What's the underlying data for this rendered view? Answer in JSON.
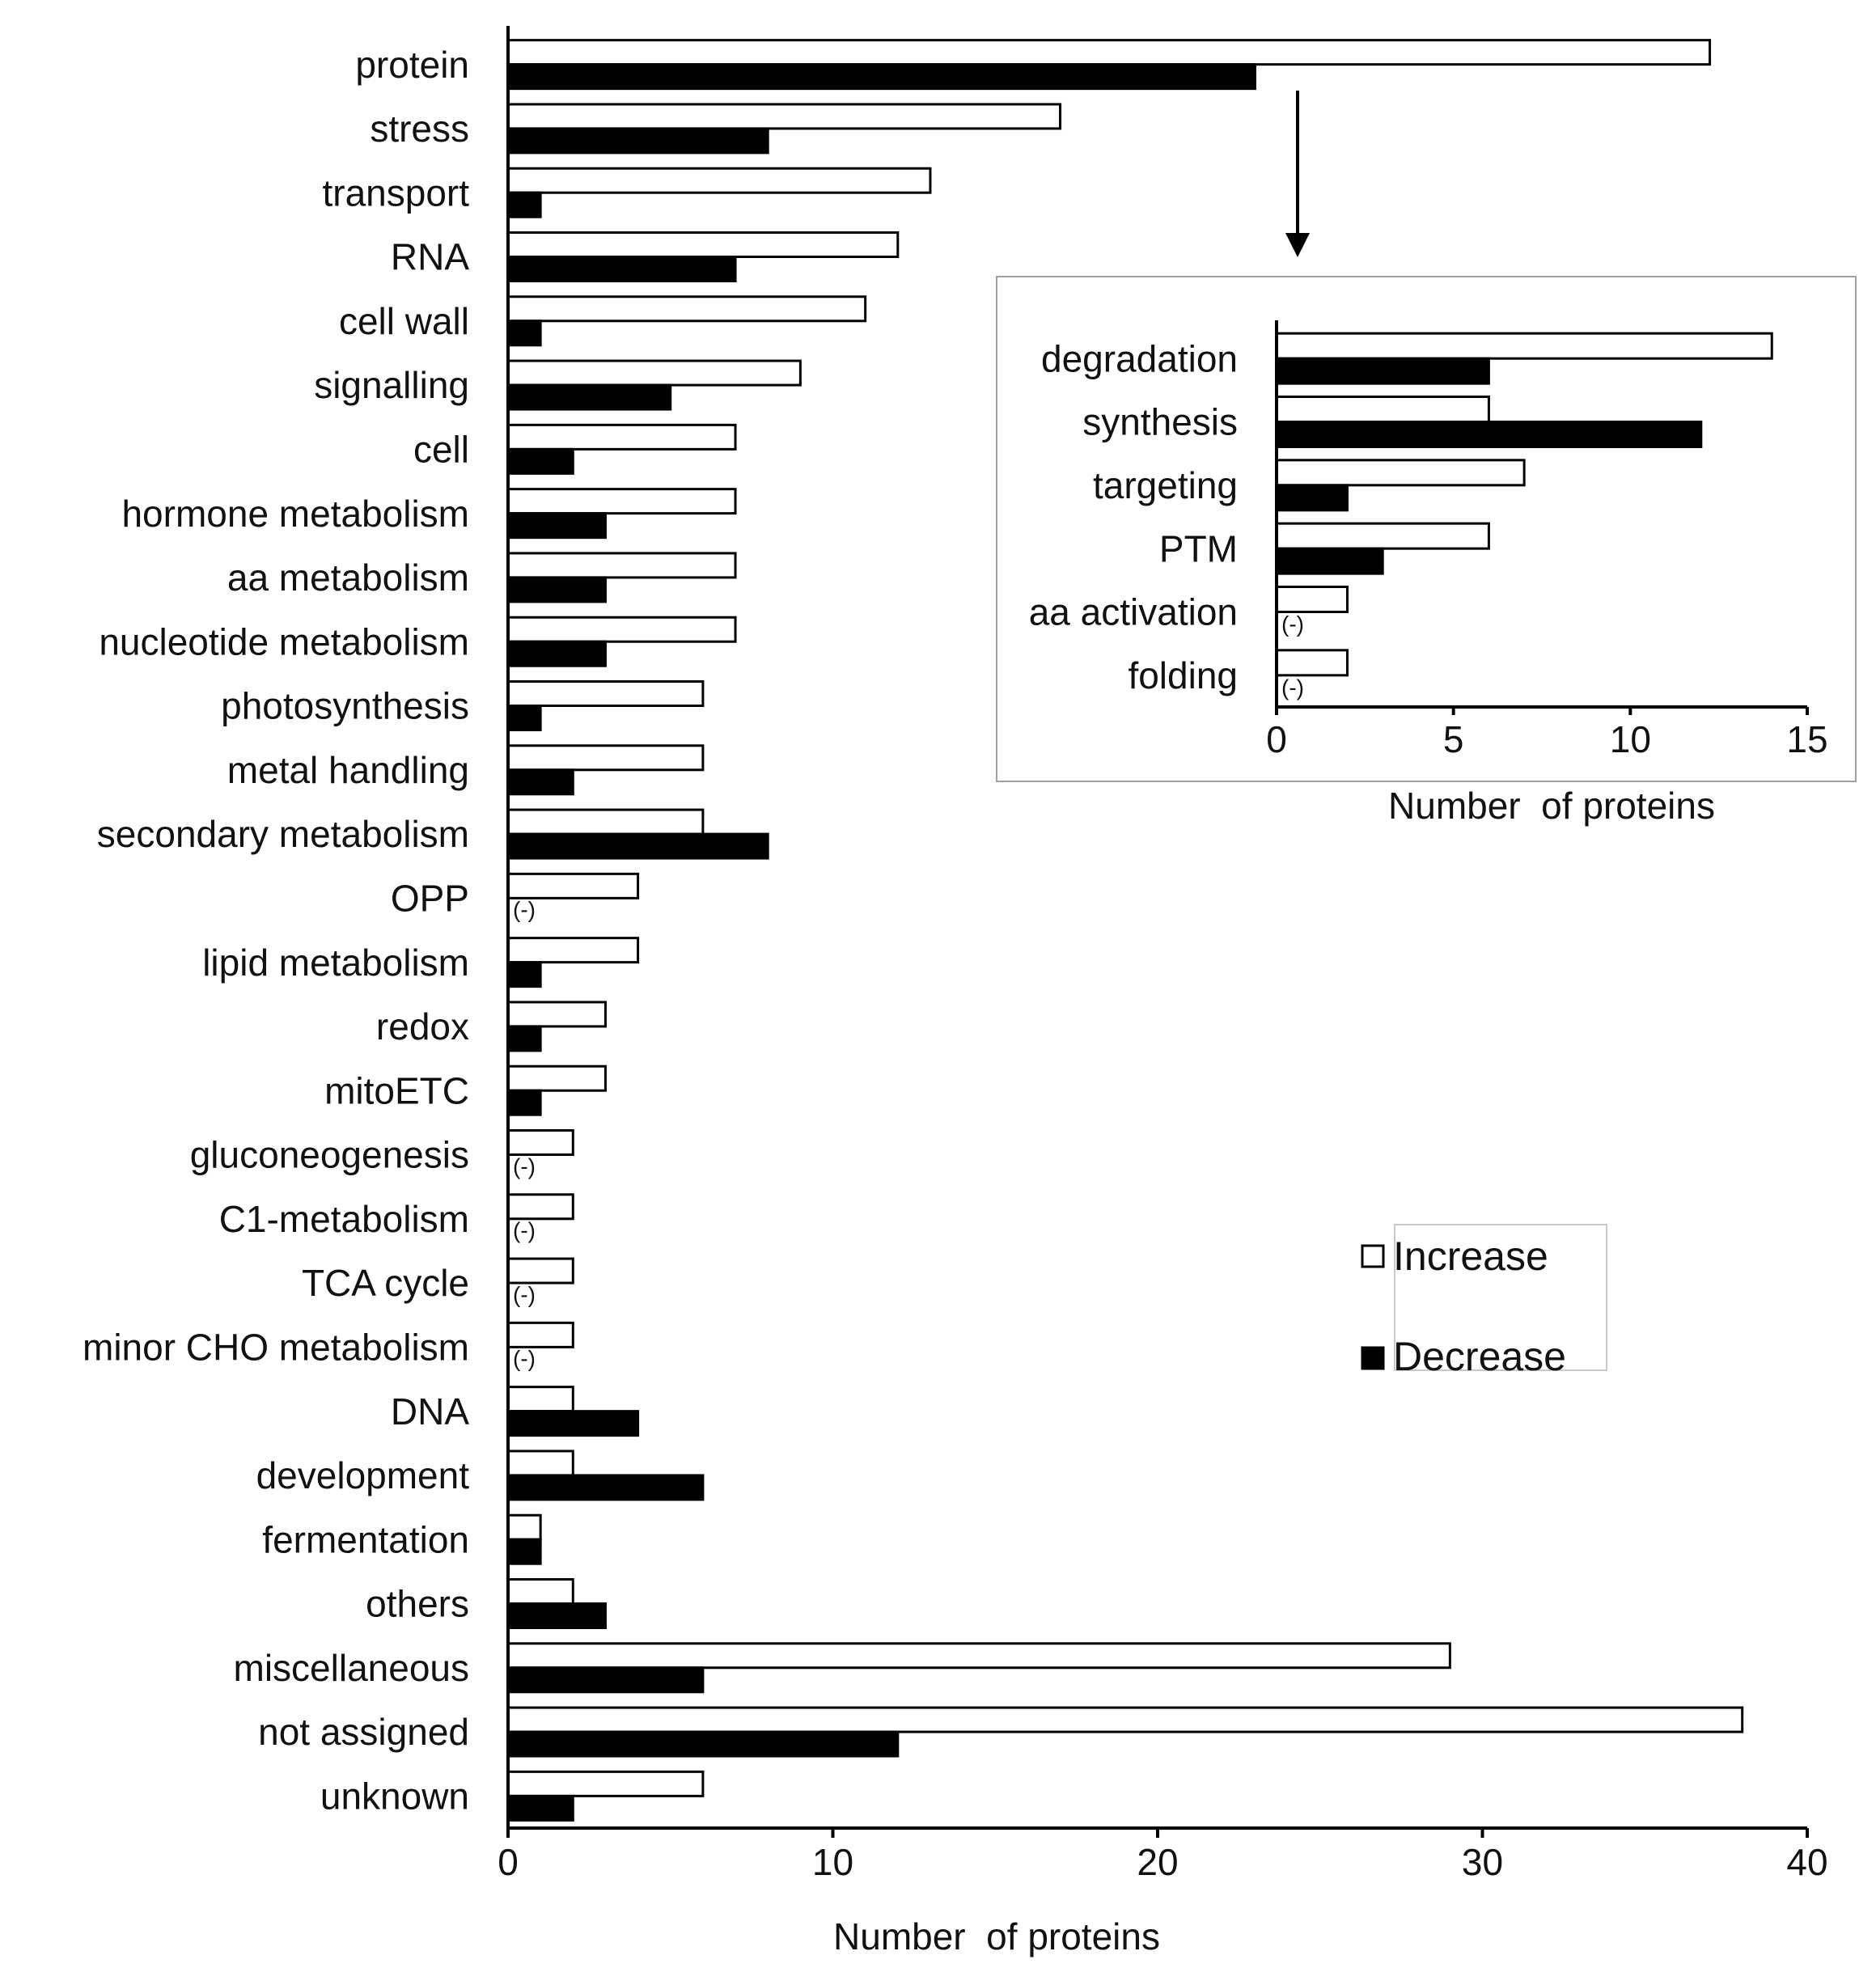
{
  "chart_data": [
    {
      "type": "bar",
      "orientation": "horizontal",
      "title": "",
      "xlabel": "Number  of proteins",
      "ylabel": "",
      "xlim": [
        0,
        40
      ],
      "xticks": [
        0,
        10,
        20,
        30,
        40
      ],
      "categories": [
        "protein",
        "stress",
        "transport",
        "RNA",
        "cell wall",
        "signalling",
        "cell",
        "hormone metabolism",
        "aa metabolism",
        "nucleotide metabolism",
        "photosynthesis",
        "metal handling",
        "secondary metabolism",
        "OPP",
        "lipid metabolism",
        "redox",
        "mitoETC",
        "gluconeogenesis",
        "C1-metabolism",
        "TCA cycle",
        "minor CHO metabolism",
        "DNA",
        "development",
        "fermentation",
        "others",
        "miscellaneous",
        "not assigned",
        "unknown"
      ],
      "series": [
        {
          "name": "Increase",
          "color": "#ffffff",
          "values": [
            37,
            17,
            13,
            12,
            11,
            9,
            7,
            7,
            7,
            7,
            6,
            6,
            6,
            4,
            4,
            3,
            3,
            2,
            2,
            2,
            2,
            2,
            2,
            1,
            2,
            29,
            38,
            6
          ]
        },
        {
          "name": "Decrease",
          "color": "#000000",
          "values": [
            23,
            8,
            1,
            7,
            1,
            5,
            2,
            3,
            3,
            3,
            1,
            2,
            8,
            null,
            1,
            1,
            1,
            null,
            null,
            null,
            null,
            4,
            6,
            1,
            3,
            6,
            12,
            2
          ]
        }
      ],
      "missing_label": "(-)",
      "grid": false,
      "legend": {
        "position": "bottom-right",
        "entries": [
          "Increase",
          "Decrease"
        ]
      }
    },
    {
      "type": "bar",
      "orientation": "horizontal",
      "title": "",
      "xlabel": "Number  of proteins",
      "ylabel": "",
      "xlim": [
        0,
        15
      ],
      "xticks": [
        0,
        5,
        10,
        15
      ],
      "categories": [
        "degradation",
        "synthesis",
        "targeting",
        "PTM",
        "aa activation",
        "folding"
      ],
      "series": [
        {
          "name": "Increase",
          "color": "#ffffff",
          "values": [
            14,
            6,
            7,
            6,
            2,
            2
          ]
        },
        {
          "name": "Decrease",
          "color": "#000000",
          "values": [
            6,
            12,
            2,
            3,
            null,
            null
          ]
        }
      ],
      "missing_label": "(-)",
      "grid": false,
      "annotation": "inset: breakdown of the protein category"
    }
  ]
}
